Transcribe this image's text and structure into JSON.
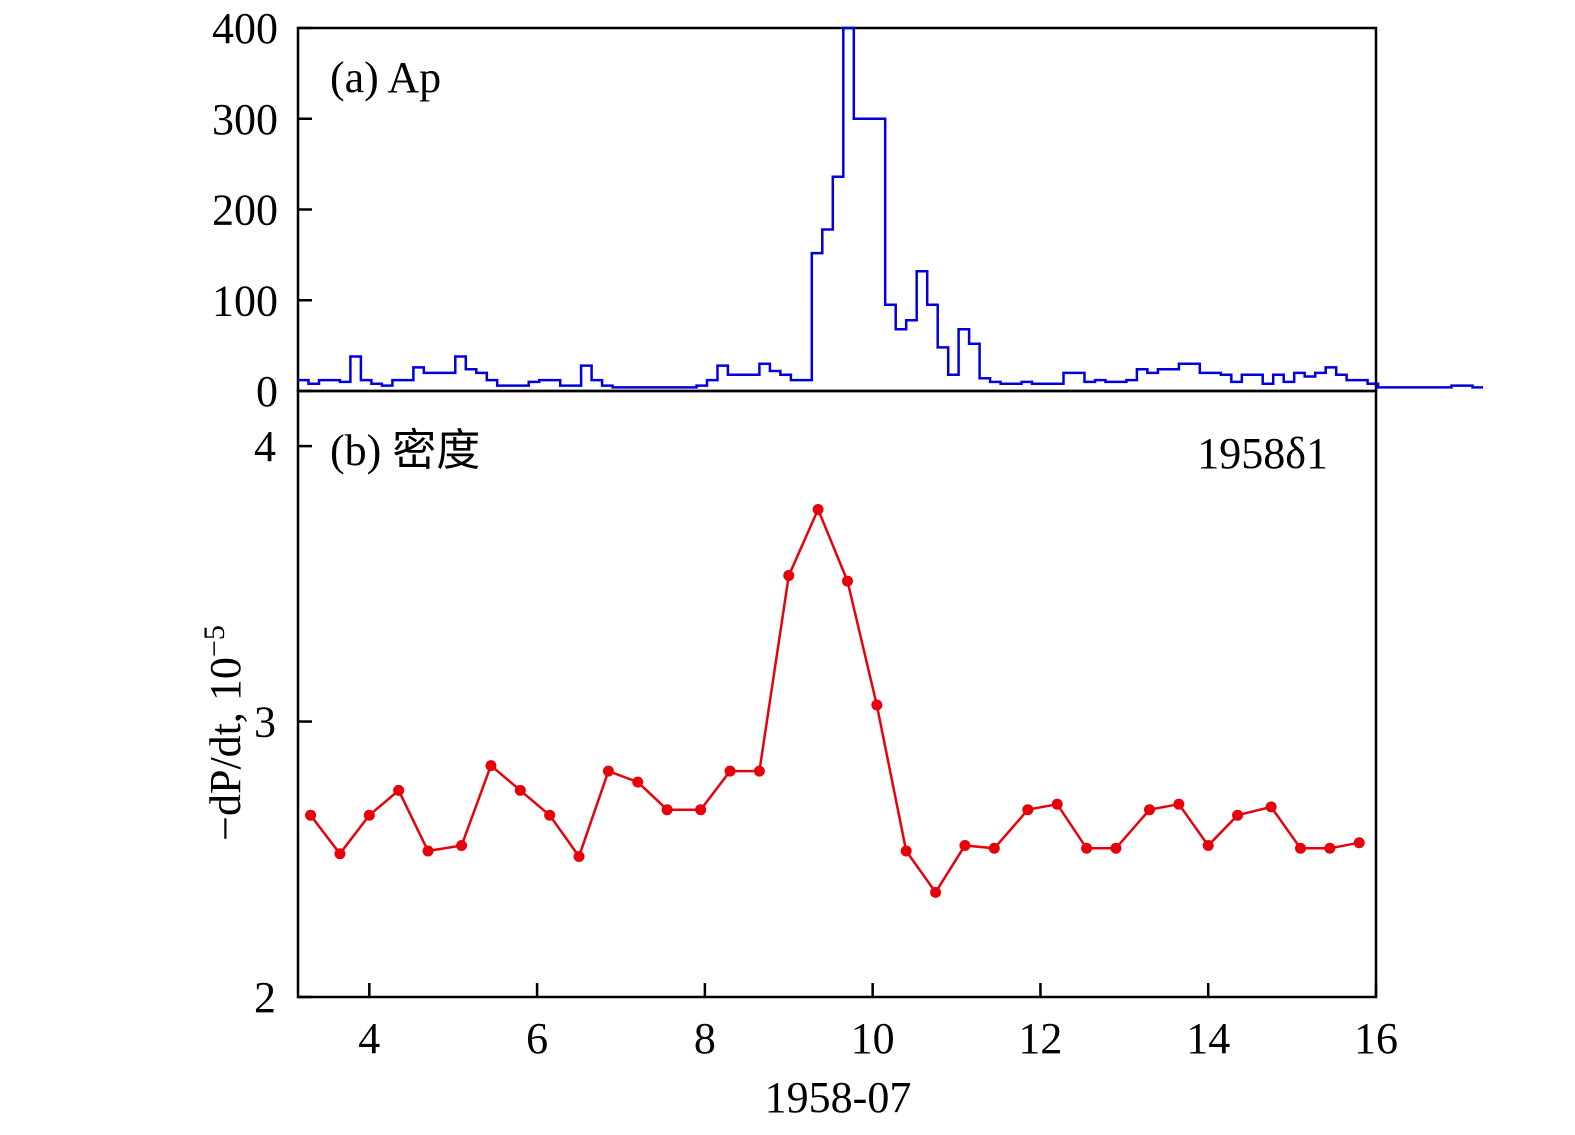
{
  "chart_data": [
    {
      "type": "line",
      "step": true,
      "panel_label": "(a) Ap",
      "ylim": [
        0,
        400
      ],
      "yticks": [
        0,
        100,
        200,
        300,
        400
      ],
      "xlim": [
        3.15,
        16
      ],
      "x_start": 3.15,
      "bin_width": 0.125,
      "series": [
        {
          "color": "#0000dd",
          "values": [
            12,
            8,
            12,
            12,
            10,
            38,
            12,
            8,
            6,
            12,
            12,
            26,
            20,
            20,
            20,
            38,
            24,
            20,
            12,
            6,
            6,
            6,
            10,
            12,
            12,
            6,
            6,
            28,
            12,
            6,
            4,
            4,
            4,
            4,
            4,
            4,
            4,
            4,
            6,
            12,
            28,
            18,
            18,
            18,
            30,
            22,
            18,
            12,
            12,
            152,
            178,
            236,
            400,
            300,
            300,
            300,
            95,
            68,
            78,
            132,
            95,
            48,
            18,
            68,
            52,
            14,
            10,
            8,
            8,
            10,
            8,
            8,
            8,
            20,
            20,
            10,
            12,
            10,
            10,
            12,
            24,
            20,
            24,
            24,
            30,
            30,
            20,
            20,
            18,
            10,
            18,
            18,
            8,
            18,
            10,
            20,
            16,
            20,
            26,
            18,
            12,
            12,
            8,
            4,
            4,
            4,
            4,
            4,
            4,
            4,
            6,
            6,
            4
          ]
        }
      ]
    },
    {
      "type": "line",
      "panel_label": "(b) 密度",
      "annotation": "1958δ1",
      "ylabel_main": "−dP/dt, 10",
      "ylabel_exp": "−5",
      "xlabel": "1958-07",
      "ylim": [
        2,
        4.2
      ],
      "yticks": [
        2,
        3,
        4
      ],
      "xlim": [
        3.15,
        16
      ],
      "xticks": [
        4,
        6,
        8,
        10,
        12,
        14,
        16
      ],
      "series": [
        {
          "color": "#e8000b",
          "x": [
            3.3,
            3.65,
            4.0,
            4.35,
            4.7,
            5.1,
            5.45,
            5.8,
            6.15,
            6.5,
            6.85,
            7.2,
            7.55,
            7.95,
            8.3,
            8.65,
            9.0,
            9.35,
            9.7,
            10.05,
            10.4,
            10.75,
            11.1,
            11.45,
            11.85,
            12.2,
            12.55,
            12.9,
            13.3,
            13.65,
            14.0,
            14.35,
            14.75,
            15.1,
            15.45,
            15.8
          ],
          "values": [
            2.66,
            2.52,
            2.66,
            2.75,
            2.53,
            2.55,
            2.84,
            2.75,
            2.66,
            2.51,
            2.82,
            2.78,
            2.68,
            2.68,
            2.82,
            2.82,
            3.53,
            3.77,
            3.51,
            3.06,
            2.53,
            2.38,
            2.55,
            2.54,
            2.68,
            2.7,
            2.54,
            2.54,
            2.68,
            2.7,
            2.55,
            2.66,
            2.69,
            2.54,
            2.54,
            2.56
          ]
        }
      ]
    }
  ]
}
